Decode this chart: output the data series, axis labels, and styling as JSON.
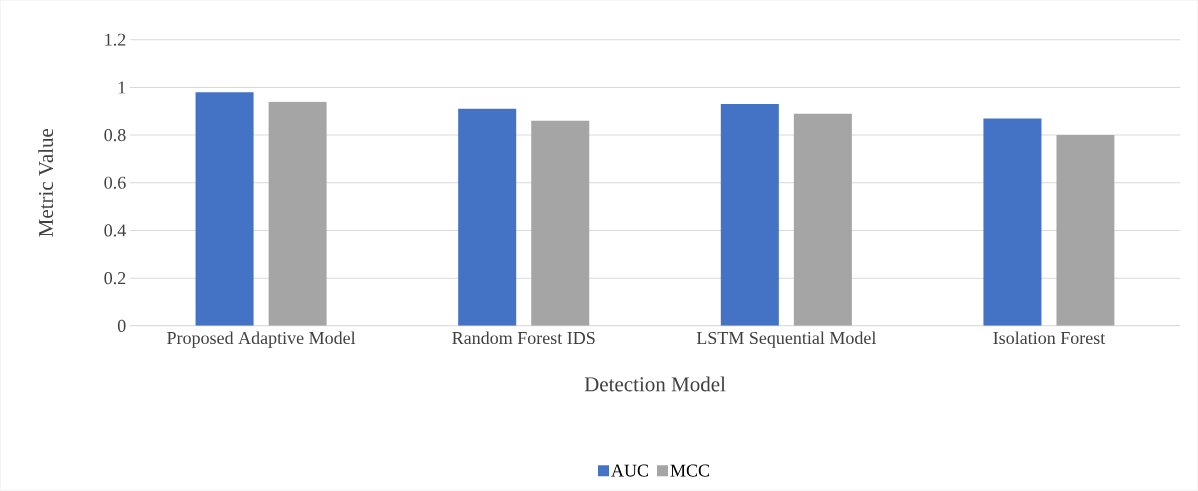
{
  "chart_data": {
    "type": "bar",
    "xlabel": "Detection Model",
    "ylabel": "Metric Value",
    "categories": [
      "Proposed Adaptive Model",
      "Random Forest IDS",
      "LSTM Sequential Model",
      "Isolation Forest"
    ],
    "series": [
      {
        "name": "AUC",
        "color": "#4472c4",
        "values": [
          0.98,
          0.91,
          0.93,
          0.87
        ]
      },
      {
        "name": "MCC",
        "color": "#a5a5a5",
        "values": [
          0.94,
          0.86,
          0.89,
          0.8
        ]
      }
    ],
    "ylim": [
      0,
      1.2
    ],
    "yticks": [
      0,
      0.2,
      0.4,
      0.6,
      0.8,
      1,
      1.2
    ],
    "grid": "y",
    "legend": "bottom"
  }
}
